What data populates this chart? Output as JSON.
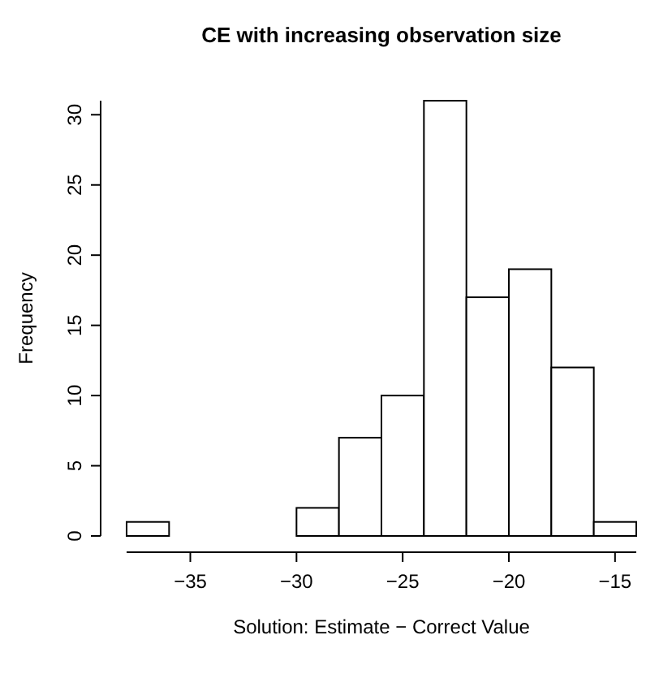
{
  "chart_data": {
    "type": "histogram",
    "title": "CE with increasing observation size",
    "xlabel": "Solution: Estimate − Correct Value",
    "ylabel": "Frequency",
    "bins": [
      -38,
      -36,
      -34,
      -32,
      -30,
      -28,
      -26,
      -24,
      -22,
      -20,
      -18,
      -16,
      -14
    ],
    "values": [
      1,
      0,
      0,
      0,
      2,
      7,
      10,
      31,
      17,
      19,
      12,
      1
    ],
    "color": "#ffffff",
    "xlim": [
      -38,
      -14
    ],
    "xticks": [
      -35,
      -30,
      -25,
      -20,
      -15
    ],
    "ylim": [
      0,
      31
    ],
    "yticks": [
      0,
      5,
      10,
      15,
      20,
      25,
      30
    ]
  }
}
